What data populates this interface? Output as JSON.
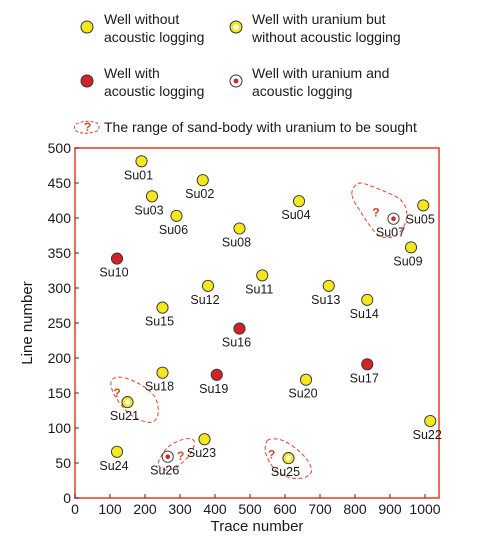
{
  "colors": {
    "plot_border": "#e24a33",
    "well_fill": "#f4e61f",
    "acoustic_fill": "#d2232a",
    "marker_stroke": "#333333",
    "uranium_dot": "#d2232a",
    "sand_outline": "#e0432a",
    "uranium_ring": "#ffffff"
  },
  "legend": {
    "items": [
      {
        "key": "plain",
        "line1": "Well without",
        "line2": "acoustic logging"
      },
      {
        "key": "uranium",
        "line1": "Well with uranium but",
        "line2": "without acoustic logging"
      },
      {
        "key": "acoustic",
        "line1": "Well with",
        "line2": "acoustic logging"
      },
      {
        "key": "uranium_acoustic",
        "line1": "Well with uranium and",
        "line2": "acoustic logging"
      }
    ],
    "range_label": "The range of sand-body with uranium to be sought",
    "range_mark": "?"
  },
  "chart_data": {
    "type": "scatter",
    "xlabel": "Trace number",
    "ylabel": "Line number",
    "xlim": [
      0,
      1040
    ],
    "ylim": [
      0,
      500
    ],
    "xticks": [
      0,
      100,
      200,
      300,
      400,
      500,
      600,
      700,
      800,
      900,
      1000
    ],
    "yticks": [
      0,
      50,
      100,
      150,
      200,
      250,
      300,
      350,
      400,
      450,
      500
    ],
    "grid": false,
    "legend_position": "top",
    "wells": [
      {
        "name": "Su01",
        "x": 190,
        "y": 481,
        "category": "plain"
      },
      {
        "name": "Su02",
        "x": 365,
        "y": 454,
        "category": "plain"
      },
      {
        "name": "Su03",
        "x": 220,
        "y": 431,
        "category": "plain"
      },
      {
        "name": "Su04",
        "x": 640,
        "y": 424,
        "category": "plain"
      },
      {
        "name": "Su05",
        "x": 995,
        "y": 418,
        "category": "plain"
      },
      {
        "name": "Su06",
        "x": 290,
        "y": 403,
        "category": "plain"
      },
      {
        "name": "Su07",
        "x": 910,
        "y": 399,
        "category": "uranium_acoustic"
      },
      {
        "name": "Su08",
        "x": 470,
        "y": 385,
        "category": "plain"
      },
      {
        "name": "Su09",
        "x": 960,
        "y": 358,
        "category": "plain"
      },
      {
        "name": "Su10",
        "x": 120,
        "y": 342,
        "category": "acoustic"
      },
      {
        "name": "Su11",
        "x": 535,
        "y": 318,
        "category": "plain"
      },
      {
        "name": "Su12",
        "x": 380,
        "y": 303,
        "category": "plain"
      },
      {
        "name": "Su13",
        "x": 725,
        "y": 303,
        "category": "plain"
      },
      {
        "name": "Su14",
        "x": 835,
        "y": 283,
        "category": "plain"
      },
      {
        "name": "Su15",
        "x": 250,
        "y": 272,
        "category": "plain"
      },
      {
        "name": "Su16",
        "x": 470,
        "y": 242,
        "category": "acoustic"
      },
      {
        "name": "Su17",
        "x": 835,
        "y": 191,
        "category": "acoustic"
      },
      {
        "name": "Su18",
        "x": 250,
        "y": 179,
        "category": "plain"
      },
      {
        "name": "Su19",
        "x": 405,
        "y": 176,
        "category": "acoustic"
      },
      {
        "name": "Su20",
        "x": 660,
        "y": 169,
        "category": "plain"
      },
      {
        "name": "Su21",
        "x": 150,
        "y": 137,
        "category": "uranium"
      },
      {
        "name": "Su22",
        "x": 1015,
        "y": 110,
        "category": "plain"
      },
      {
        "name": "Su23",
        "x": 370,
        "y": 84,
        "category": "plain"
      },
      {
        "name": "Su24",
        "x": 120,
        "y": 66,
        "category": "plain"
      },
      {
        "name": "Su25",
        "x": 610,
        "y": 57,
        "category": "uranium"
      },
      {
        "name": "Su26",
        "x": 265,
        "y": 59,
        "category": "uranium_acoustic"
      }
    ],
    "sand_bodies": [
      {
        "id": "near-su07",
        "label": "?",
        "label_at": [
          860,
          408
        ],
        "outline": [
          [
            790,
            440
          ],
          [
            810,
            452
          ],
          [
            845,
            446
          ],
          [
            885,
            438
          ],
          [
            930,
            428
          ],
          [
            950,
            412
          ],
          [
            945,
            390
          ],
          [
            915,
            372
          ],
          [
            870,
            372
          ],
          [
            840,
            390
          ],
          [
            812,
            412
          ],
          [
            792,
            428
          ]
        ]
      },
      {
        "id": "near-su21",
        "label": "?",
        "label_at": [
          120,
          150
        ],
        "outline": [
          [
            100,
            170
          ],
          [
            130,
            174
          ],
          [
            170,
            167
          ],
          [
            205,
            157
          ],
          [
            235,
            142
          ],
          [
            240,
            117
          ],
          [
            220,
            106
          ],
          [
            180,
            112
          ],
          [
            150,
            122
          ],
          [
            125,
            137
          ],
          [
            106,
            152
          ]
        ]
      },
      {
        "id": "near-su26",
        "label": "?",
        "label_at": [
          302,
          60
        ],
        "outline": [
          [
            238,
            53
          ],
          [
            262,
            73
          ],
          [
            300,
            83
          ],
          [
            330,
            86
          ],
          [
            345,
            80
          ],
          [
            330,
            62
          ],
          [
            300,
            47
          ],
          [
            275,
            40
          ],
          [
            250,
            40
          ],
          [
            238,
            46
          ]
        ]
      },
      {
        "id": "near-su25",
        "label": "?",
        "label_at": [
          562,
          62
        ],
        "outline": [
          [
            555,
            85
          ],
          [
            590,
            84
          ],
          [
            630,
            72
          ],
          [
            665,
            55
          ],
          [
            680,
            37
          ],
          [
            660,
            29
          ],
          [
            625,
            27
          ],
          [
            590,
            33
          ],
          [
            560,
            46
          ],
          [
            542,
            65
          ],
          [
            545,
            80
          ]
        ]
      }
    ]
  }
}
